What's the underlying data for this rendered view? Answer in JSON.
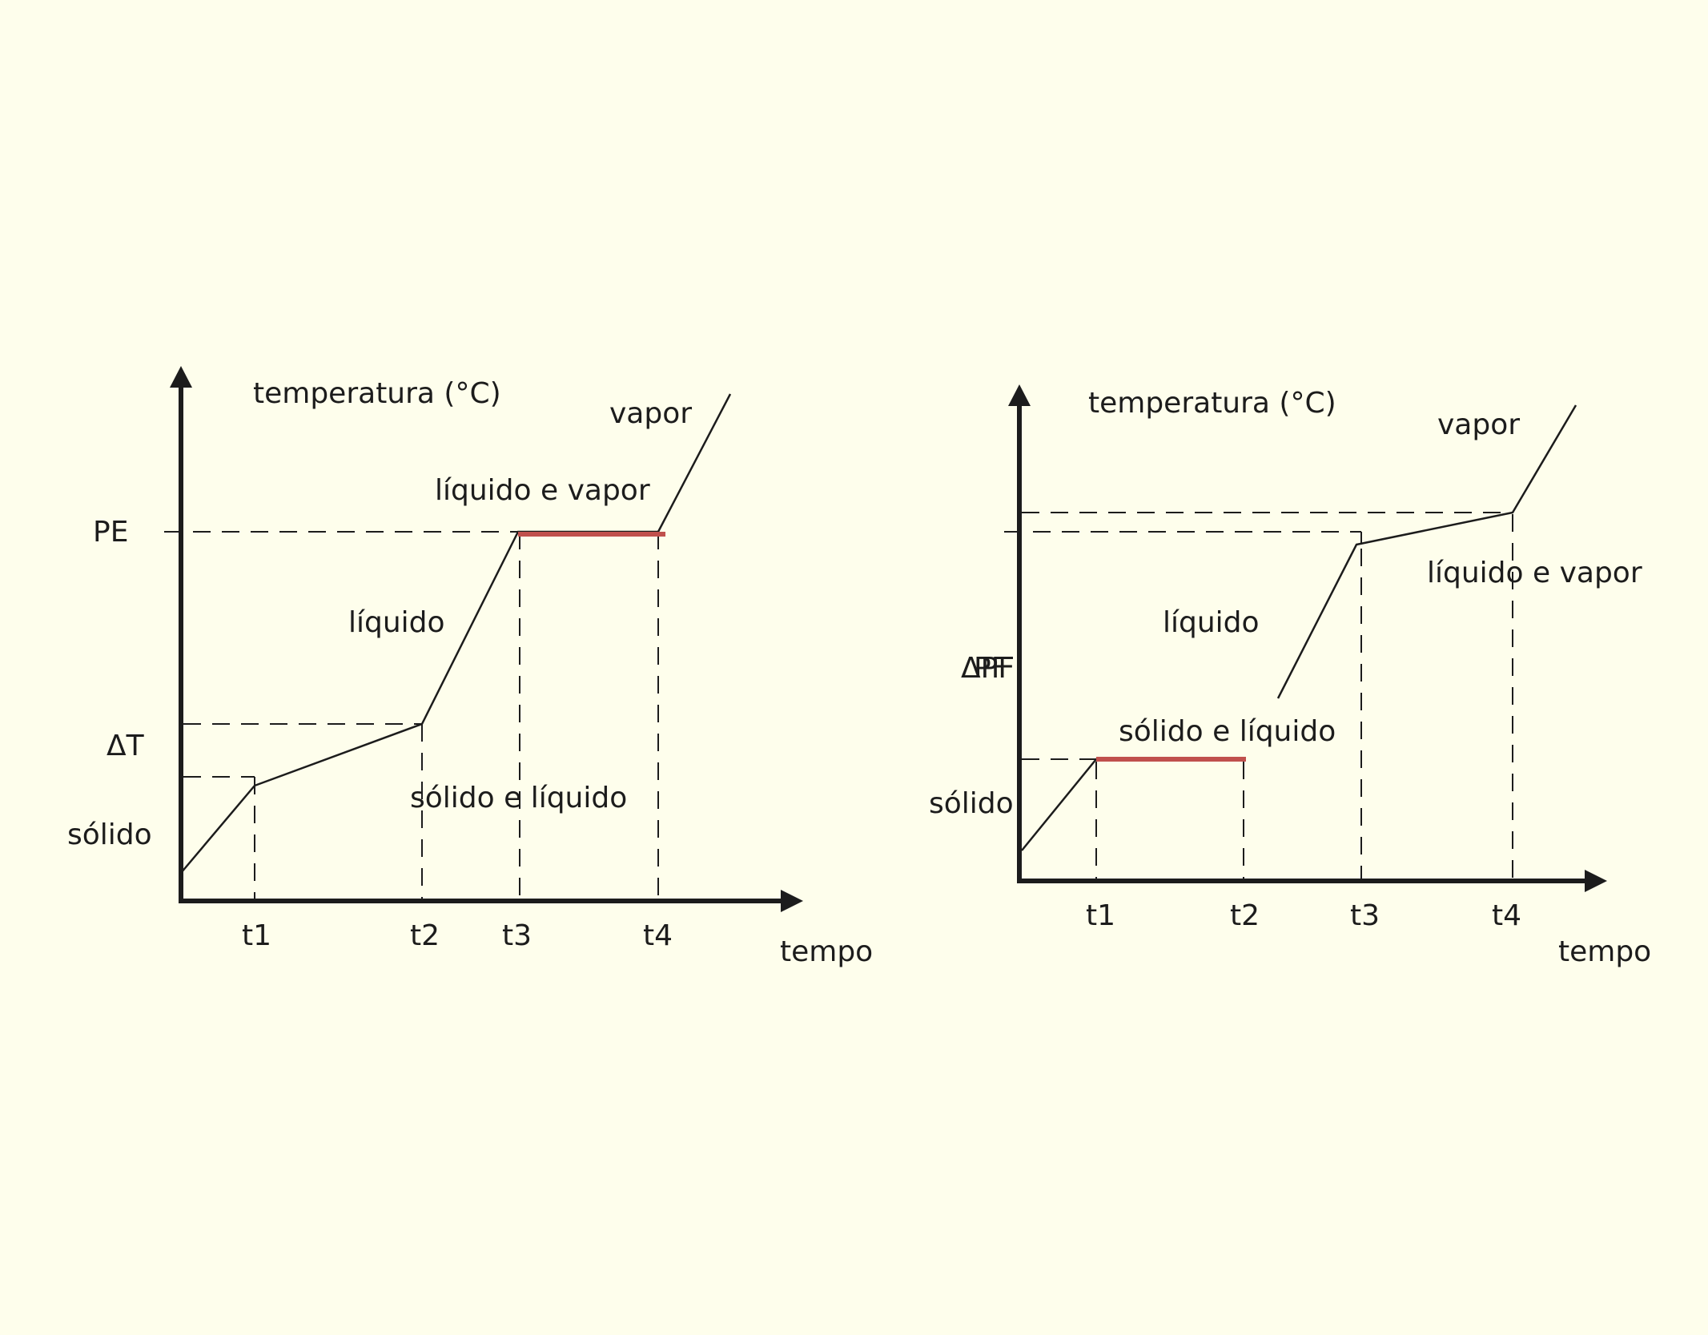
{
  "colors": {
    "background": "#fefeec",
    "axis": "#1c1c1c",
    "curve": "#1c1c1c",
    "plateau": "#c0504d"
  },
  "chart_data": [
    {
      "type": "line",
      "ylabel": "temperatura (°C)",
      "xlabel": "tempo",
      "x_ticks": [
        "t1",
        "t2",
        "t3",
        "t4"
      ],
      "y_markers": [
        "PE",
        "ΔT"
      ],
      "phase_labels": [
        "sólido",
        "sólido e líquido",
        "líquido",
        "líquido e vapor",
        "vapor"
      ],
      "curve": [
        {
          "x": 0,
          "y": 0.07
        },
        {
          "x": 1,
          "y": 0.28
        },
        {
          "x": 3.3,
          "y": 0.42
        },
        {
          "x": 4.6,
          "y": 0.87
        },
        {
          "x": 6.5,
          "y": 0.87
        },
        {
          "x": 7.5,
          "y": 1.15
        }
      ],
      "plateau": {
        "x_from": 4.6,
        "x_to": 6.5,
        "y": 0.87
      }
    },
    {
      "type": "line",
      "ylabel": "temperatura (°C)",
      "xlabel": "tempo",
      "x_ticks": [
        "t1",
        "t2",
        "t3",
        "t4"
      ],
      "y_markers": [
        "ΔPF",
        "PF"
      ],
      "phase_labels": [
        "sólido",
        "sólido e líquido",
        "líquido",
        "líquido e vapor",
        "vapor"
      ],
      "curve": [
        {
          "x": 0,
          "y": 0.08
        },
        {
          "x": 1,
          "y": 0.31
        },
        {
          "x": 3,
          "y": 0.31
        },
        {
          "x": 3.5,
          "y": 0.47
        },
        {
          "x": 4.6,
          "y": 0.85
        },
        {
          "x": 6.6,
          "y": 0.93
        },
        {
          "x": 7.5,
          "y": 1.15
        }
      ],
      "plateau": {
        "x_from": 1,
        "x_to": 3,
        "y": 0.31
      }
    }
  ]
}
